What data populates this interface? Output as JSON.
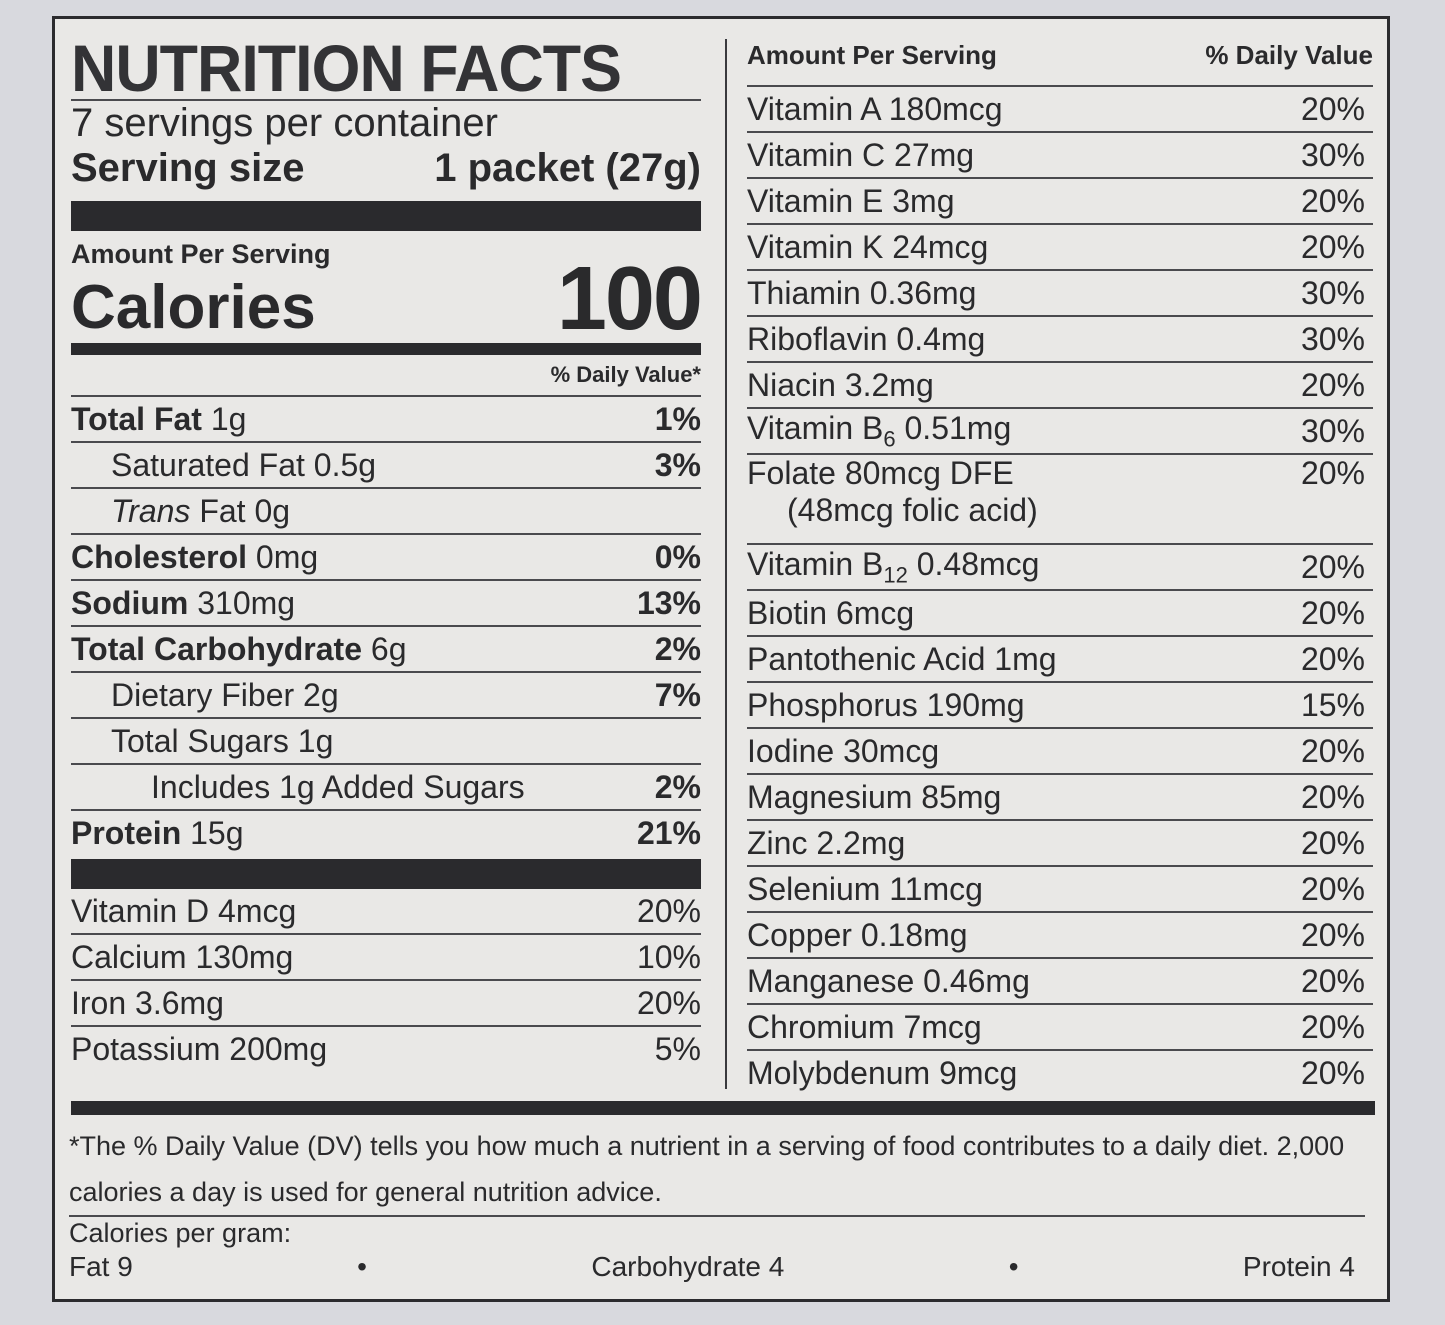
{
  "label": {
    "title": "NUTRITION FACTS",
    "servings_per_container": "7 servings per container",
    "serving_size_label": "Serving size",
    "serving_size_value": "1 packet (27g)",
    "amount_per_serving": "Amount Per Serving",
    "calories_label": "Calories",
    "calories_value": "100",
    "daily_value_header": "% Daily Value*"
  },
  "macros": [
    {
      "bold": "Total Fat",
      "rest": " 1g",
      "pct": "1%"
    },
    {
      "bold": "",
      "rest": "Saturated Fat 0.5g",
      "pct": "3%"
    },
    {
      "bold": "",
      "italic": "Trans",
      "rest": " Fat 0g",
      "pct": ""
    },
    {
      "bold": "Cholesterol",
      "rest": " 0mg",
      "pct": "0%"
    },
    {
      "bold": "Sodium",
      "rest": " 310mg",
      "pct": "13%"
    },
    {
      "bold": "Total Carbohydrate",
      "rest": " 6g",
      "pct": "2%"
    },
    {
      "bold": "",
      "rest": "Dietary Fiber 2g",
      "pct": "7%"
    },
    {
      "bold": "",
      "rest": "Total Sugars 1g",
      "pct": ""
    },
    {
      "bold": "",
      "rest": "Includes 1g Added Sugars",
      "pct": "2%"
    },
    {
      "bold": "Protein",
      "rest": " 15g",
      "pct": "21%"
    }
  ],
  "minerals_left": [
    {
      "name": "Vitamin D 4mcg",
      "pct": "20%"
    },
    {
      "name": "Calcium 130mg",
      "pct": "10%"
    },
    {
      "name": "Iron 3.6mg",
      "pct": "20%"
    },
    {
      "name": "Potassium 200mg",
      "pct": "5%"
    }
  ],
  "right_header": {
    "left": "Amount Per Serving",
    "right": "% Daily Value"
  },
  "vitamins": [
    {
      "name": "Vitamin A  180mcg",
      "pct": "20%"
    },
    {
      "name": "Vitamin C  27mg",
      "pct": "30%"
    },
    {
      "name": "Vitamin E  3mg",
      "pct": "20%"
    },
    {
      "name": "Vitamin K  24mcg",
      "pct": "20%"
    },
    {
      "name": "Thiamin  0.36mg",
      "pct": "30%"
    },
    {
      "name": "Riboflavin  0.4mg",
      "pct": "30%"
    },
    {
      "name": "Niacin  3.2mg",
      "pct": "20%"
    },
    {
      "name": "Vitamin B6  0.51mg",
      "pct": "30%"
    },
    {
      "name": "Folate  80mcg DFE",
      "sub": "(48mcg folic acid)",
      "pct": "20%"
    },
    {
      "name": "Vitamin B12  0.48mcg",
      "pct": "20%"
    },
    {
      "name": "Biotin  6mcg",
      "pct": "20%"
    },
    {
      "name": "Pantothenic Acid  1mg",
      "pct": "20%"
    },
    {
      "name": "Phosphorus  190mg",
      "pct": "15%"
    },
    {
      "name": "Iodine  30mcg",
      "pct": "20%"
    },
    {
      "name": "Magnesium  85mg",
      "pct": "20%"
    },
    {
      "name": "Zinc  2.2mg",
      "pct": "20%"
    },
    {
      "name": "Selenium  11mcg",
      "pct": "20%"
    },
    {
      "name": "Copper  0.18mg",
      "pct": "20%"
    },
    {
      "name": "Manganese  0.46mg",
      "pct": "20%"
    },
    {
      "name": "Chromium  7mcg",
      "pct": "20%"
    },
    {
      "name": "Molybdenum  9mcg",
      "pct": "20%"
    }
  ],
  "footnote": {
    "text": "*The % Daily Value (DV) tells you how much a nutrient in a serving of food contributes to a daily diet. 2,000 calories a day is used for general nutrition advice.",
    "calories_per_gram": "Calories per gram:",
    "fat": "Fat 9",
    "bullet": "•",
    "carbohydrate": "Carbohydrate 4",
    "protein": "Protein 4"
  }
}
